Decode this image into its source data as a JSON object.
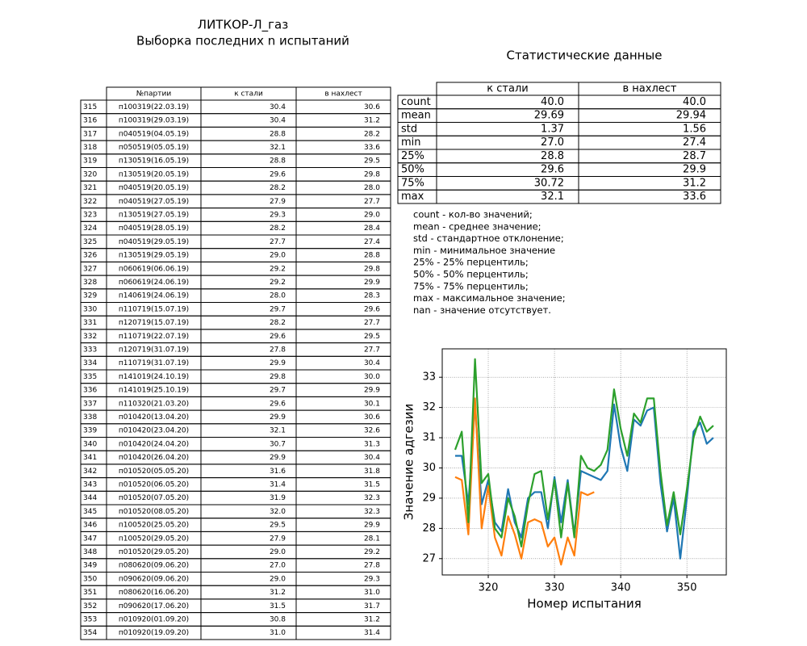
{
  "header": {
    "title": "ЛИТКОР-Л_газ",
    "subtitle": "Выборка последних n испытаний"
  },
  "table": {
    "columns": [
      "№партии",
      "к стали",
      "в нахлест"
    ],
    "rows": [
      [
        "315",
        "п100319(22.03.19)",
        "30.4",
        "30.6"
      ],
      [
        "316",
        "п100319(29.03.19)",
        "30.4",
        "31.2"
      ],
      [
        "317",
        "п040519(04.05.19)",
        "28.8",
        "28.2"
      ],
      [
        "318",
        "п050519(05.05.19)",
        "32.1",
        "33.6"
      ],
      [
        "319",
        "п130519(16.05.19)",
        "28.8",
        "29.5"
      ],
      [
        "320",
        "п130519(20.05.19)",
        "29.6",
        "29.8"
      ],
      [
        "321",
        "п040519(20.05.19)",
        "28.2",
        "28.0"
      ],
      [
        "322",
        "п040519(27.05.19)",
        "27.9",
        "27.7"
      ],
      [
        "323",
        "п130519(27.05.19)",
        "29.3",
        "29.0"
      ],
      [
        "324",
        "п040519(28.05.19)",
        "28.2",
        "28.4"
      ],
      [
        "325",
        "п040519(29.05.19)",
        "27.7",
        "27.4"
      ],
      [
        "326",
        "п130519(29.05.19)",
        "29.0",
        "28.8"
      ],
      [
        "327",
        "п060619(06.06.19)",
        "29.2",
        "29.8"
      ],
      [
        "328",
        "п060619(24.06.19)",
        "29.2",
        "29.9"
      ],
      [
        "329",
        "п140619(24.06.19)",
        "28.0",
        "28.3"
      ],
      [
        "330",
        "п110719(15.07.19)",
        "29.7",
        "29.6"
      ],
      [
        "331",
        "п120719(15.07.19)",
        "28.2",
        "27.7"
      ],
      [
        "332",
        "п110719(22.07.19)",
        "29.6",
        "29.5"
      ],
      [
        "333",
        "п120719(31.07.19)",
        "27.8",
        "27.7"
      ],
      [
        "334",
        "п110719(31.07.19)",
        "29.9",
        "30.4"
      ],
      [
        "335",
        "п141019(24.10.19)",
        "29.8",
        "30.0"
      ],
      [
        "336",
        "п141019(25.10.19)",
        "29.7",
        "29.9"
      ],
      [
        "337",
        "п110320(21.03.20)",
        "29.6",
        "30.1"
      ],
      [
        "338",
        "п010420(13.04.20)",
        "29.9",
        "30.6"
      ],
      [
        "339",
        "п010420(23.04.20)",
        "32.1",
        "32.6"
      ],
      [
        "340",
        "п010420(24.04.20)",
        "30.7",
        "31.3"
      ],
      [
        "341",
        "п010420(26.04.20)",
        "29.9",
        "30.4"
      ],
      [
        "342",
        "п010520(05.05.20)",
        "31.6",
        "31.8"
      ],
      [
        "343",
        "п010520(06.05.20)",
        "31.4",
        "31.5"
      ],
      [
        "344",
        "п010520(07.05.20)",
        "31.9",
        "32.3"
      ],
      [
        "345",
        "п010520(08.05.20)",
        "32.0",
        "32.3"
      ],
      [
        "346",
        "п100520(25.05.20)",
        "29.5",
        "29.9"
      ],
      [
        "347",
        "п100520(29.05.20)",
        "27.9",
        "28.1"
      ],
      [
        "348",
        "п010520(29.05.20)",
        "29.0",
        "29.2"
      ],
      [
        "349",
        "п080620(09.06.20)",
        "27.0",
        "27.8"
      ],
      [
        "350",
        "п090620(09.06.20)",
        "29.0",
        "29.3"
      ],
      [
        "351",
        "п080620(16.06.20)",
        "31.2",
        "31.0"
      ],
      [
        "352",
        "п090620(17.06.20)",
        "31.5",
        "31.7"
      ],
      [
        "353",
        "п010920(01.09.20)",
        "30.8",
        "31.2"
      ],
      [
        "354",
        "п010920(19.09.20)",
        "31.0",
        "31.4"
      ]
    ]
  },
  "stats": {
    "title": "Статистические данные",
    "columns": [
      "к стали",
      "в нахлест"
    ],
    "rows": [
      [
        "count",
        "40.0",
        "40.0"
      ],
      [
        "mean",
        "29.69",
        "29.94"
      ],
      [
        "std",
        "1.37",
        "1.56"
      ],
      [
        "min",
        "27.0",
        "27.4"
      ],
      [
        "25%",
        "28.8",
        "28.7"
      ],
      [
        "50%",
        "29.6",
        "29.9"
      ],
      [
        "75%",
        "30.72",
        "31.2"
      ],
      [
        "max",
        "32.1",
        "33.6"
      ]
    ],
    "notes": [
      "count - кол-во значений;",
      "mean - среднее значение;",
      "std - стандартное отклонение;",
      "min - минимальное значение",
      "25% - 25% перцентиль;",
      "50% - 50% перцентиль;",
      "75% - 75% перцентиль;",
      "max - максимальное значение;",
      "nan - значение отсутствует."
    ]
  },
  "chart_data": {
    "type": "line",
    "x_label": "Номер испытания",
    "y_label": "Значение адгезии",
    "x": [
      315,
      316,
      317,
      318,
      319,
      320,
      321,
      322,
      323,
      324,
      325,
      326,
      327,
      328,
      329,
      330,
      331,
      332,
      333,
      334,
      335,
      336,
      337,
      338,
      339,
      340,
      341,
      342,
      343,
      344,
      345,
      346,
      347,
      348,
      349,
      350,
      351,
      352,
      353,
      354
    ],
    "series": [
      {
        "color": "#1f77b4",
        "values": [
          30.4,
          30.4,
          28.8,
          32.1,
          28.8,
          29.6,
          28.2,
          27.9,
          29.3,
          28.2,
          27.7,
          29.0,
          29.2,
          29.2,
          28.0,
          29.7,
          28.2,
          29.6,
          27.8,
          29.9,
          29.8,
          29.7,
          29.6,
          29.9,
          32.1,
          30.7,
          29.9,
          31.6,
          31.4,
          31.9,
          32.0,
          29.5,
          27.9,
          29.0,
          27.0,
          29.0,
          31.2,
          31.5,
          30.8,
          31.0
        ]
      },
      {
        "color": "#ff7f0e",
        "values": [
          29.7,
          29.6,
          27.8,
          32.3,
          28.0,
          29.4,
          27.7,
          27.1,
          28.4,
          27.8,
          27.0,
          28.2,
          28.3,
          28.2,
          27.4,
          27.7,
          26.8,
          27.7,
          27.1,
          29.2,
          29.1,
          29.2,
          null,
          null,
          null,
          null,
          null,
          null,
          null,
          null,
          null,
          null,
          null,
          null,
          null,
          null,
          null,
          null,
          null,
          null
        ]
      },
      {
        "color": "#2ca02c",
        "values": [
          30.6,
          31.2,
          28.2,
          33.6,
          29.5,
          29.8,
          28.0,
          27.7,
          29.0,
          28.4,
          27.4,
          28.8,
          29.8,
          29.9,
          28.3,
          29.6,
          27.7,
          29.5,
          27.7,
          30.4,
          30.0,
          29.9,
          30.1,
          30.6,
          32.6,
          31.3,
          30.4,
          31.8,
          31.5,
          32.3,
          32.3,
          29.9,
          28.1,
          29.2,
          27.8,
          29.3,
          31.0,
          31.7,
          31.2,
          31.4
        ]
      }
    ],
    "xlim": [
      313.05,
      355.95
    ],
    "ylim": [
      26.46,
      33.94
    ],
    "xticks": [
      320,
      330,
      340,
      350
    ],
    "yticks": [
      27,
      28,
      29,
      30,
      31,
      32,
      33
    ],
    "grid": true
  }
}
